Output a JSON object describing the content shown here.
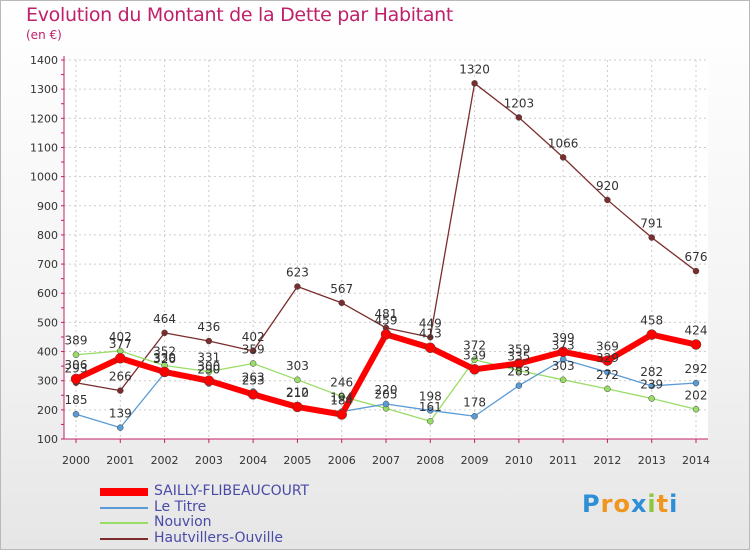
{
  "title": "Evolution du Montant de la Dette par Habitant",
  "unit_label": "(en €)",
  "logo": {
    "letters": [
      "P",
      "r",
      "o",
      "x",
      "i",
      "t",
      "i"
    ],
    "colors": [
      "#2f8fd6",
      "#f0961e",
      "#f0961e",
      "#2f8fd6",
      "#8dc63f",
      "#f0961e",
      "#2f8fd6"
    ]
  },
  "chart_data": {
    "type": "line",
    "title": "Evolution du Montant de la Dette par Habitant",
    "ylabel": "(en €)",
    "xlabel": "",
    "x": [
      "2000",
      "2001",
      "2002",
      "2003",
      "2004",
      "2005",
      "2006",
      "2007",
      "2008",
      "2009",
      "2010",
      "2011",
      "2012",
      "2013",
      "2014"
    ],
    "ylim": [
      100,
      1400
    ],
    "yticks": [
      100,
      200,
      300,
      400,
      500,
      600,
      700,
      800,
      900,
      1000,
      1100,
      1200,
      1300,
      1400
    ],
    "grid": true,
    "legend_position": "bottom-left",
    "series": [
      {
        "name": "Hautvillers-Ouville",
        "color": "#7b2d2d",
        "width": 1.3,
        "values": [
          293,
          266,
          464,
          436,
          402,
          623,
          567,
          481,
          449,
          1320,
          1203,
          1066,
          920,
          791,
          676
        ]
      },
      {
        "name": "Nouvion",
        "color": "#99dd66",
        "width": 1.3,
        "values": [
          389,
          402,
          352,
          331,
          359,
          303,
          246,
          205,
          161,
          372,
          335,
          303,
          272,
          239,
          202
        ]
      },
      {
        "name": "Le Titre",
        "color": "#5b9bd5",
        "width": 1.3,
        "values": [
          185,
          139,
          326,
          290,
          263,
          212,
          194,
          220,
          198,
          178,
          283,
          373,
          329,
          282,
          292
        ]
      },
      {
        "name": "SAILLY-FLIBEAUCOURT",
        "color": "#ff0000",
        "width": 6,
        "values": [
          306,
          377,
          330,
          300,
          253,
          210,
          184,
          459,
          413,
          339,
          359,
          399,
          369,
          458,
          424
        ]
      }
    ]
  },
  "legend": [
    {
      "name": "SAILLY-FLIBEAUCOURT",
      "color": "#ff0000",
      "thickness": 8
    },
    {
      "name": "Le Titre",
      "color": "#5b9bd5",
      "thickness": 2
    },
    {
      "name": "Nouvion",
      "color": "#99dd66",
      "thickness": 2
    },
    {
      "name": "Hautvillers-Ouville",
      "color": "#7b2d2d",
      "thickness": 2
    }
  ]
}
